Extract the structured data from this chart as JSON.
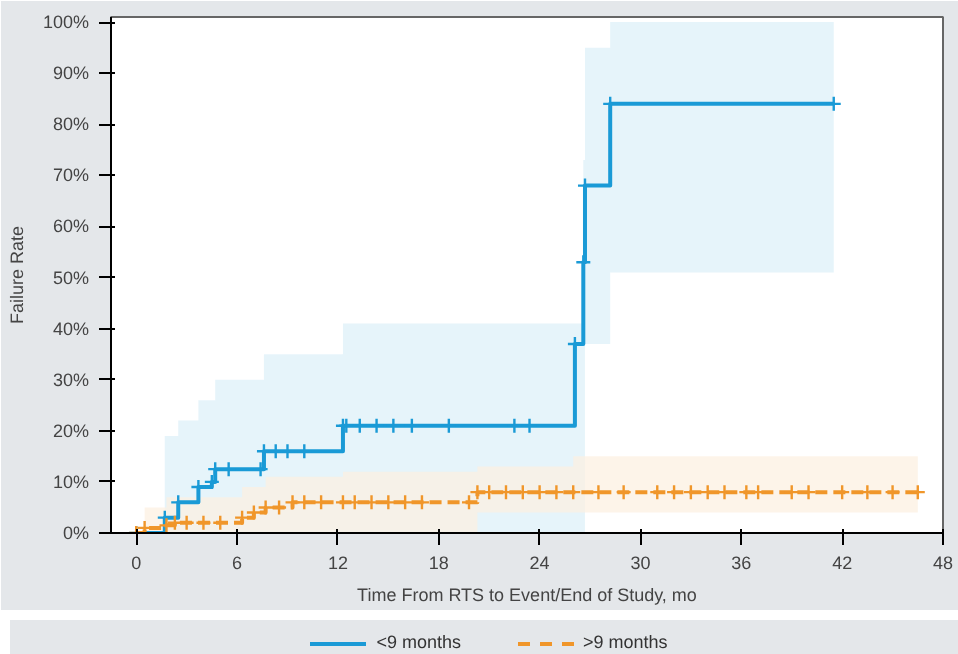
{
  "chart_data": {
    "type": "step",
    "xlabel": "Time From RTS to Event/End of Study, mo",
    "ylabel": "Failure Rate",
    "xlim": [
      -1.5,
      48
    ],
    "ylim": [
      0,
      101
    ],
    "xticks": [
      0,
      6,
      12,
      18,
      24,
      30,
      36,
      42,
      48
    ],
    "yticks": [
      {
        "value": 0,
        "label": "0%"
      },
      {
        "value": 10,
        "label": "10%"
      },
      {
        "value": 20,
        "label": "20%"
      },
      {
        "value": 30,
        "label": "30%"
      },
      {
        "value": 40,
        "label": "40%"
      },
      {
        "value": 50,
        "label": "50%"
      },
      {
        "value": 60,
        "label": "60%"
      },
      {
        "value": 70,
        "label": "70%"
      },
      {
        "value": 80,
        "label": "80%"
      },
      {
        "value": 90,
        "label": "90%"
      },
      {
        "value": 100,
        "label": "100%"
      }
    ],
    "grid": false,
    "legend": "bottom",
    "marker": "cross",
    "series": [
      {
        "name": "<9 months",
        "color": "#1a9ad6",
        "line_style": "solid",
        "x": [
          0,
          1.7,
          2.5,
          3.7,
          4.5,
          4.7,
          5.5,
          7.4,
          7.6,
          8.3,
          9.0,
          10.0,
          12.3,
          12.5,
          13.3,
          14.3,
          15.3,
          16.4,
          18.6,
          22.5,
          23.4,
          26.1,
          26.6,
          26.7,
          28.2,
          41.5
        ],
        "values": [
          0,
          3,
          6,
          9,
          10,
          12.5,
          12.5,
          12.5,
          16,
          16,
          16,
          16,
          21,
          21,
          21,
          21,
          21,
          21,
          21,
          21,
          21,
          37,
          53,
          68,
          84,
          84
        ],
        "lower": [
          0,
          0,
          0,
          0,
          0,
          0,
          0,
          0,
          0,
          0,
          0,
          0,
          0,
          0,
          0,
          0,
          0,
          0,
          0,
          0,
          0,
          0,
          0,
          37,
          51,
          51
        ],
        "upper": [
          0,
          19,
          22,
          26,
          26,
          30,
          30,
          30,
          35,
          35,
          35,
          35,
          41,
          41,
          41,
          41,
          41,
          41,
          41,
          41,
          41,
          41,
          73,
          95,
          100,
          100
        ]
      },
      {
        "name": ">9 months",
        "color": "#f0962a",
        "line_style": "dashed",
        "x": [
          0,
          0.5,
          1.8,
          2.3,
          3,
          4,
          5,
          6.3,
          7,
          7.7,
          8.5,
          9.3,
          10,
          11,
          12.3,
          13,
          14,
          15,
          16,
          17,
          19.8,
          20.3,
          21,
          22,
          23,
          24,
          25,
          26,
          27.5,
          29,
          31,
          32,
          33,
          34,
          35,
          36.3,
          37,
          39,
          40,
          42,
          43.5,
          45,
          46.5
        ],
        "values": [
          0,
          1,
          1.5,
          2,
          2,
          2,
          2,
          3,
          4,
          5,
          5,
          6,
          6,
          6,
          6,
          6,
          6,
          6,
          6,
          6,
          6,
          8,
          8,
          8,
          8,
          8,
          8,
          8,
          8,
          8,
          8,
          8,
          8,
          8,
          8,
          8,
          8,
          8,
          8,
          8,
          8,
          8,
          8
        ],
        "lower": [
          0,
          0,
          0,
          0,
          0,
          0,
          0,
          0,
          0,
          0,
          0,
          0,
          0,
          0,
          0,
          0,
          0,
          0,
          0,
          0,
          0,
          4,
          4,
          4,
          4,
          4,
          4,
          4,
          4,
          4,
          4,
          4,
          4,
          4,
          4,
          4,
          4,
          4,
          4,
          4,
          4,
          4,
          4
        ],
        "upper": [
          0,
          5,
          7,
          7,
          7,
          7,
          7,
          9,
          9,
          11,
          11,
          11,
          11,
          11,
          12,
          12,
          12,
          12,
          12,
          12,
          12,
          13,
          13,
          13,
          13,
          13,
          13,
          15,
          15,
          15,
          15,
          15,
          15,
          15,
          15,
          15,
          15,
          15,
          15,
          15,
          15,
          15,
          15
        ]
      }
    ]
  }
}
